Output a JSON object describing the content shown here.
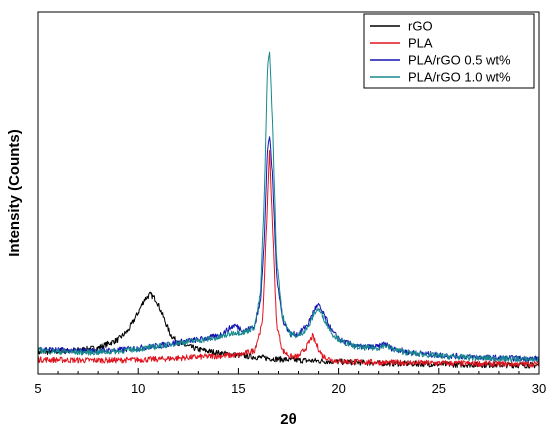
{
  "chart_data": {
    "type": "line",
    "xlabel": "2θ",
    "ylabel": "Intensity (Counts)",
    "xlim": [
      5,
      30
    ],
    "ylim": [
      0,
      100
    ],
    "x_ticks": [
      5,
      10,
      15,
      20,
      25,
      30
    ],
    "y_tick_labels_shown": false,
    "grid": false,
    "legend_position": "top-right",
    "series": [
      {
        "name": "rGO",
        "color": "#000000",
        "x": [
          5,
          6,
          7,
          8,
          9,
          9.5,
          10,
          10.3,
          10.6,
          10.9,
          11.2,
          11.6,
          12,
          13,
          14,
          15,
          16,
          17,
          18,
          20,
          22,
          24,
          26,
          28,
          30
        ],
        "values": [
          6,
          6.2,
          6.6,
          7.2,
          9.5,
          12,
          17,
          20.5,
          22,
          20.5,
          16.5,
          11,
          8.5,
          6.8,
          5.8,
          5.2,
          4.6,
          4.1,
          3.8,
          3.4,
          3,
          2.8,
          2.6,
          2.5,
          2.4
        ]
      },
      {
        "name": "PLA",
        "color": "#e0141e",
        "x": [
          5,
          7,
          9,
          11,
          12,
          14,
          15,
          15.8,
          16.2,
          16.4,
          16.55,
          16.7,
          16.9,
          17.2,
          17.6,
          18,
          18.4,
          18.7,
          18.9,
          19.2,
          19.6,
          20,
          22,
          25,
          28,
          30
        ],
        "values": [
          4,
          3.8,
          3.8,
          4.1,
          4.4,
          5,
          5.2,
          6.5,
          14,
          40,
          62,
          42,
          14,
          6.5,
          4.8,
          4.8,
          7.5,
          10.5,
          8,
          5,
          4,
          3.5,
          3.2,
          3,
          2.8,
          2.7
        ]
      },
      {
        "name": "PLA/rGO 0.5 wt%",
        "color": "#1414b4",
        "x": [
          5,
          6,
          7,
          8,
          9,
          10,
          11,
          12,
          13,
          14,
          14.8,
          15.3,
          15.8,
          16.1,
          16.3,
          16.45,
          16.55,
          16.7,
          16.9,
          17.2,
          17.6,
          18,
          18.5,
          18.8,
          19,
          19.3,
          19.7,
          20.2,
          21,
          22,
          22.3,
          22.6,
          23.5,
          25,
          27,
          29,
          30
        ],
        "values": [
          7,
          6.6,
          6.4,
          6.4,
          6.6,
          7.2,
          7.8,
          8.8,
          9.5,
          10.5,
          13.5,
          12,
          13,
          20,
          38,
          62,
          66,
          55,
          28,
          15,
          11,
          11,
          14,
          18,
          19,
          16,
          11.5,
          9,
          7.5,
          7.5,
          8.5,
          7.2,
          6,
          5.2,
          4.6,
          4.3,
          4.2
        ]
      },
      {
        "name": "PLA/rGO 1.0 wt%",
        "color": "#17898c",
        "x": [
          5,
          6,
          7,
          8,
          9,
          10,
          11,
          12,
          13,
          14,
          14.8,
          15.3,
          15.8,
          16.1,
          16.3,
          16.45,
          16.55,
          16.7,
          16.9,
          17.2,
          17.6,
          18,
          18.5,
          18.8,
          19,
          19.3,
          19.7,
          20.2,
          21,
          22,
          22.3,
          22.6,
          23.5,
          25,
          27,
          29,
          30
        ],
        "values": [
          6.5,
          6.2,
          6,
          6,
          6.3,
          6.9,
          7.6,
          8.6,
          9.3,
          10,
          11.5,
          11.5,
          13,
          22,
          50,
          84,
          90,
          70,
          32,
          16,
          11,
          10.5,
          13,
          17,
          18,
          15,
          11,
          8.8,
          7.3,
          7.2,
          8,
          7,
          5.8,
          5,
          4.4,
          4.1,
          4
        ]
      }
    ]
  }
}
